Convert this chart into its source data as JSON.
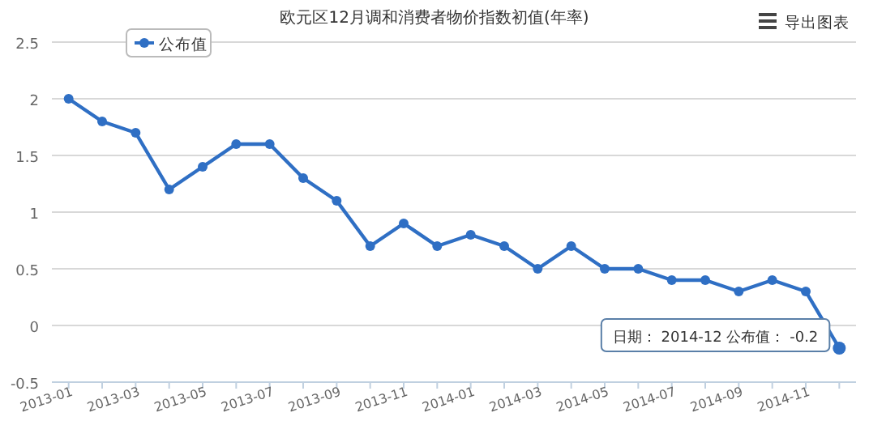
{
  "chart_data": {
    "type": "line",
    "title": "欧元区12月调和消费者物价指数初值(年率)",
    "categories": [
      "2013-01",
      null,
      "2013-03",
      null,
      "2013-05",
      null,
      "2013-07",
      null,
      "2013-09",
      null,
      "2013-11",
      null,
      "2014-01",
      null,
      "2014-03",
      null,
      "2014-05",
      null,
      "2014-07",
      null,
      "2014-09",
      null,
      "2014-11",
      null
    ],
    "series": [
      {
        "name": "公布值",
        "color": "#2f6fc4",
        "values": [
          2.0,
          1.8,
          1.7,
          1.2,
          1.4,
          1.6,
          1.6,
          1.3,
          1.1,
          0.7,
          0.9,
          0.7,
          0.8,
          0.7,
          0.5,
          0.7,
          0.5,
          0.5,
          0.4,
          0.4,
          0.3,
          0.4,
          0.3,
          -0.2
        ]
      }
    ],
    "ylim": [
      -0.5,
      2.5
    ],
    "yticks": [
      -0.5,
      0,
      0.5,
      1,
      1.5,
      2,
      2.5
    ],
    "grid": "y",
    "legend": "top left",
    "marker": "circle",
    "line_style": "solid",
    "annotations": [
      "日期： 2014-12 公布值： -0.2",
      "导出图表"
    ]
  }
}
